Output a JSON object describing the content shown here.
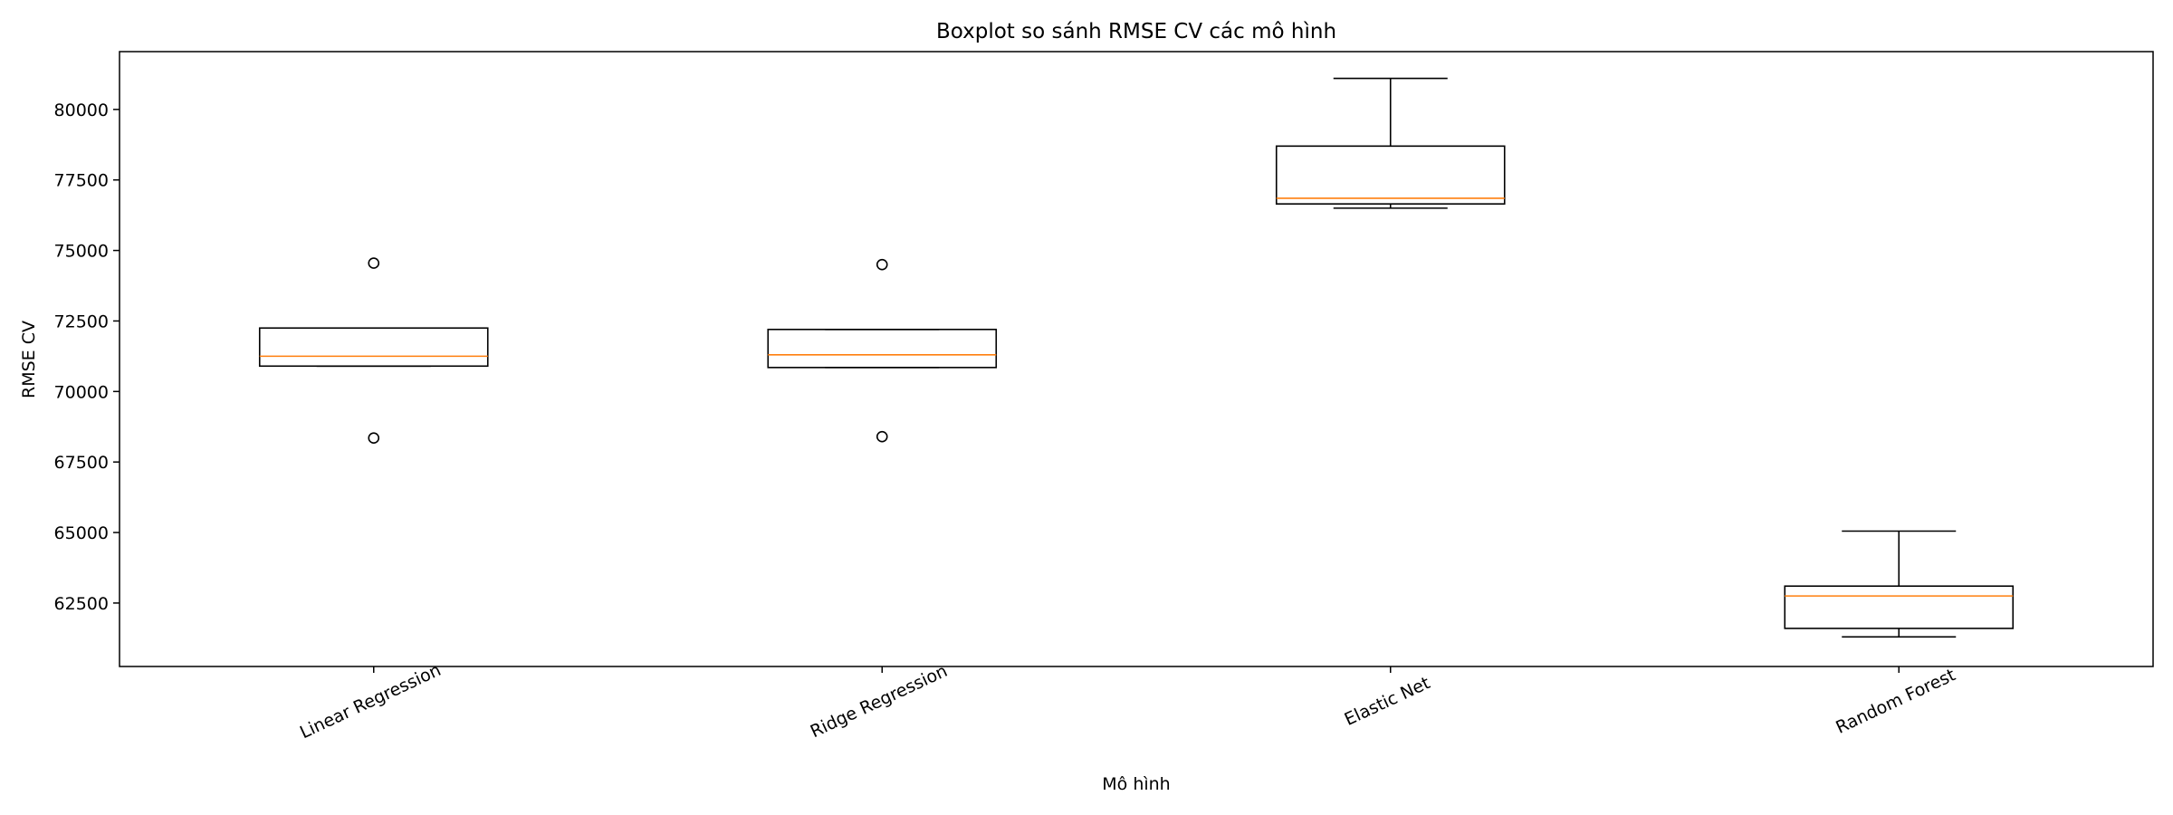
{
  "chart_data": {
    "type": "boxplot",
    "title": "Boxplot so sánh RMSE CV các mô hình",
    "xlabel": "Mô hình",
    "ylabel": "RMSE CV",
    "ylim": [
      60250,
      82050
    ],
    "yticks": [
      62500,
      65000,
      67500,
      70000,
      72500,
      75000,
      77500,
      80000
    ],
    "categories": [
      "Linear Regression",
      "Ridge Regression",
      "Elastic Net",
      "Random Forest"
    ],
    "boxes": [
      {
        "name": "Linear Regression",
        "whisker_low": 70900,
        "q1": 70900,
        "median": 71250,
        "q3": 72250,
        "whisker_high": 72250,
        "outliers": [
          68350,
          74550
        ]
      },
      {
        "name": "Ridge Regression",
        "whisker_low": 70850,
        "q1": 70850,
        "median": 71300,
        "q3": 72200,
        "whisker_high": 72200,
        "outliers": [
          68400,
          74500
        ]
      },
      {
        "name": "Elastic Net",
        "whisker_low": 76500,
        "q1": 76650,
        "median": 76850,
        "q3": 78700,
        "whisker_high": 81100,
        "outliers": []
      },
      {
        "name": "Random Forest",
        "whisker_low": 61300,
        "q1": 61600,
        "median": 62750,
        "q3": 63100,
        "whisker_high": 65050,
        "outliers": []
      }
    ],
    "grid": false,
    "colors": {
      "box": "#000000",
      "median": "#ff7f0e"
    }
  }
}
